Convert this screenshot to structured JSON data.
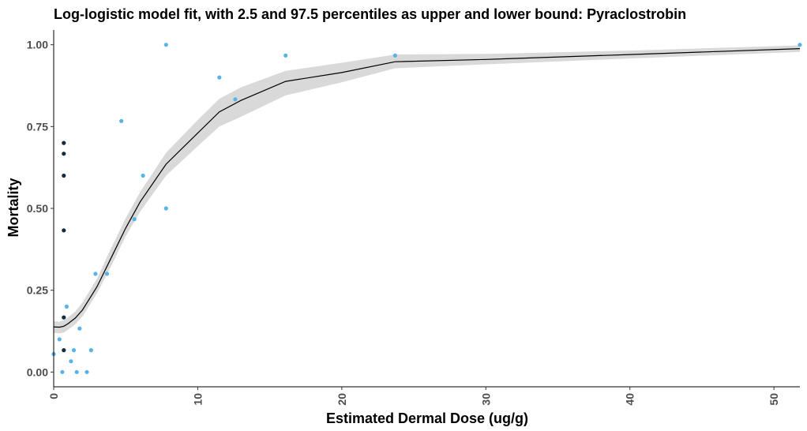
{
  "chart_data": {
    "type": "scatter",
    "title": "Log-logistic model fit, with 2.5 and 97.5 percentiles as upper and lower bound: Pyraclostrobin",
    "xlabel": "Estimated Dermal Dose (ug/g)",
    "ylabel": "Mortality",
    "xlim": [
      0,
      51.8
    ],
    "ylim": [
      -0.045,
      1.045
    ],
    "x_ticks": [
      0,
      10,
      20,
      30,
      40,
      50
    ],
    "x_tick_labels": [
      "0",
      "10",
      "20",
      "30",
      "40",
      "50"
    ],
    "y_ticks": [
      0.0,
      0.25,
      0.5,
      0.75,
      1.0
    ],
    "y_tick_labels": [
      "0.00",
      "0.25",
      "0.50",
      "0.75",
      "1.00"
    ],
    "grid": false,
    "legend": "none",
    "colors": {
      "light_points": "#56b4e9",
      "dark_points": "#132b43",
      "fit_line": "#000000",
      "band": "#d9d9d9"
    },
    "series": [
      {
        "values": [
          {
            "x": 0.0,
            "y": 0.055
          },
          {
            "x": 0.4,
            "y": 0.1
          },
          {
            "x": 0.6,
            "y": 0.0
          },
          {
            "x": 0.9,
            "y": 0.2
          },
          {
            "x": 1.2,
            "y": 0.033
          },
          {
            "x": 1.4,
            "y": 0.067
          },
          {
            "x": 1.6,
            "y": 0.0
          },
          {
            "x": 1.8,
            "y": 0.133
          },
          {
            "x": 2.3,
            "y": 0.0
          },
          {
            "x": 2.6,
            "y": 0.067
          },
          {
            "x": 2.9,
            "y": 0.3
          },
          {
            "x": 3.7,
            "y": 0.3
          },
          {
            "x": 4.7,
            "y": 0.767
          },
          {
            "x": 5.6,
            "y": 0.467
          },
          {
            "x": 6.2,
            "y": 0.6
          },
          {
            "x": 7.8,
            "y": 1.0
          },
          {
            "x": 7.8,
            "y": 0.5
          },
          {
            "x": 11.5,
            "y": 0.9
          },
          {
            "x": 12.6,
            "y": 0.833
          },
          {
            "x": 16.1,
            "y": 0.967
          },
          {
            "x": 23.7,
            "y": 0.967
          },
          {
            "x": 51.8,
            "y": 1.0
          }
        ]
      },
      {
        "values": [
          {
            "x": 0.7,
            "y": 0.7
          },
          {
            "x": 0.7,
            "y": 0.667
          },
          {
            "x": 0.7,
            "y": 0.6
          },
          {
            "x": 0.7,
            "y": 0.433
          },
          {
            "x": 0.7,
            "y": 0.167
          },
          {
            "x": 0.7,
            "y": 0.067
          }
        ]
      }
    ],
    "fit": {
      "x": [
        0.0,
        0.4,
        0.7,
        1.0,
        1.5,
        2.0,
        3.0,
        4.0,
        5.0,
        6.0,
        7.8,
        10.0,
        11.5,
        13.0,
        16.1,
        20.0,
        23.7,
        30.0,
        40.0,
        51.8
      ],
      "y": [
        0.138,
        0.137,
        0.14,
        0.148,
        0.165,
        0.19,
        0.26,
        0.35,
        0.44,
        0.52,
        0.635,
        0.73,
        0.795,
        0.83,
        0.888,
        0.915,
        0.948,
        0.955,
        0.97,
        0.988
      ],
      "lower": [
        0.12,
        0.118,
        0.121,
        0.129,
        0.146,
        0.17,
        0.24,
        0.325,
        0.415,
        0.49,
        0.6,
        0.69,
        0.75,
        0.78,
        0.845,
        0.885,
        0.928,
        0.94,
        0.958,
        0.978
      ],
      "upper": [
        0.155,
        0.154,
        0.158,
        0.167,
        0.185,
        0.213,
        0.285,
        0.38,
        0.47,
        0.55,
        0.67,
        0.77,
        0.835,
        0.87,
        0.92,
        0.945,
        0.97,
        0.972,
        0.982,
        0.998
      ]
    }
  }
}
